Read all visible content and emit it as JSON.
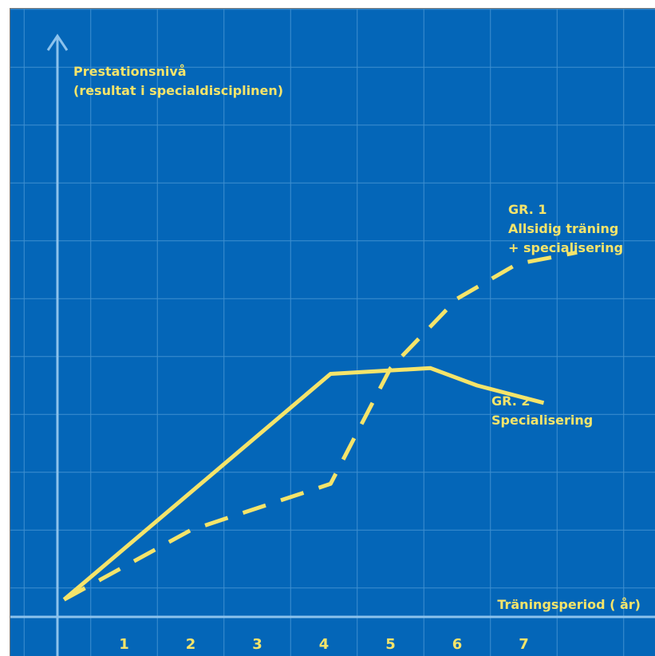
{
  "chart_data": {
    "type": "line",
    "ylabel": [
      "Prestationsnivå",
      "(resultat i specialdisciplinen)"
    ],
    "xlabel": "Träningsperiod ( år)",
    "x_ticks": [
      "1",
      "2",
      "3",
      "4",
      "5",
      "6",
      "7"
    ],
    "xlim": [
      0,
      8.8
    ],
    "ylim": [
      0,
      10
    ],
    "grid": true,
    "series": [
      {
        "name": "GR. 1 Allsidig träning + specialisering",
        "label_lines": [
          "GR. 1",
          "Allsidig träning",
          "+ specialisering"
        ],
        "style": "dashed",
        "x": [
          0.1,
          2.0,
          4.1,
          5.0,
          6.0,
          6.9,
          7.8
        ],
        "y": [
          0.3,
          1.5,
          2.3,
          4.3,
          5.5,
          6.1,
          6.3
        ]
      },
      {
        "name": "GR. 2 Specialisering",
        "label_lines": [
          "GR. 2",
          "Specialisering"
        ],
        "style": "solid",
        "x": [
          0.1,
          4.1,
          5.6,
          6.3,
          7.3
        ],
        "y": [
          0.3,
          4.2,
          4.3,
          4.0,
          3.7
        ]
      }
    ]
  },
  "colors": {
    "background": "#0466b8",
    "grid": "#3e8fd0",
    "axis": "#8cc2ec",
    "line": "#f5e46a",
    "text": "#f5e46a"
  }
}
